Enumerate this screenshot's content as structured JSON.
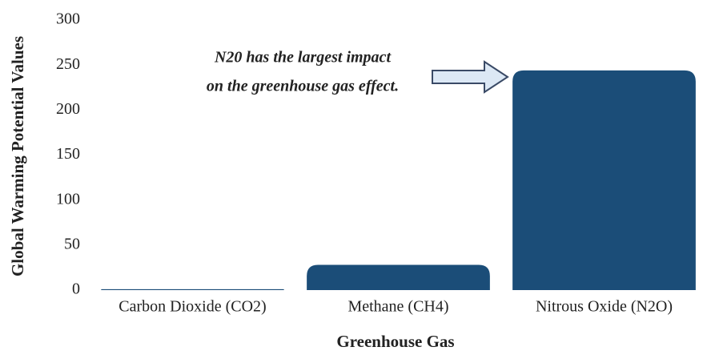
{
  "chart_data": {
    "type": "bar",
    "categories": [
      "Carbon Dioxide (CO2)",
      "Methane (CH4)",
      "Nitrous Oxide (N2O)"
    ],
    "values": [
      1,
      28,
      244
    ],
    "color": "#1b4d78",
    "xlabel": "Greenhouse Gas",
    "ylabel": "Global Warming Potential Values",
    "ylim": [
      0,
      300
    ],
    "yticks": [
      0,
      50,
      100,
      150,
      200,
      250,
      300
    ],
    "annotation": [
      "N20 has the largest impact",
      "on the greenhouse gas effect."
    ]
  }
}
